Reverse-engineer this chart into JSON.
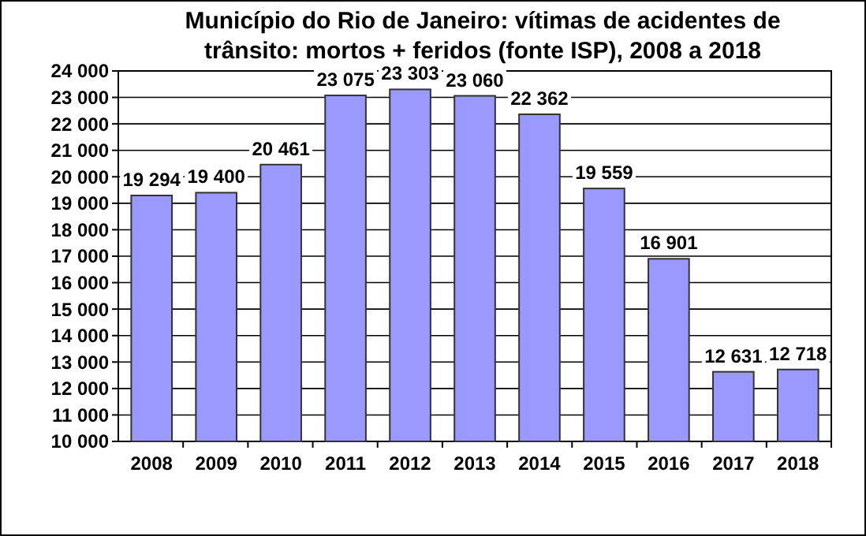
{
  "chart_data": {
    "type": "bar",
    "title": "Município do Rio de Janeiro: vítimas de acidentes de trânsito: mortos + feridos (fonte ISP), 2008 a 2018",
    "categories": [
      "2008",
      "2009",
      "2010",
      "2011",
      "2012",
      "2013",
      "2014",
      "2015",
      "2016",
      "2017",
      "2018"
    ],
    "values": [
      19294,
      19400,
      20461,
      23075,
      23303,
      23060,
      22362,
      19559,
      16901,
      12631,
      12718
    ],
    "value_labels": [
      "19 294",
      "19 400",
      "20 461",
      "23 075",
      "23 303",
      "23 060",
      "22 362",
      "19 559",
      "16 901",
      "12 631",
      "12 718"
    ],
    "color": "#9999ff",
    "ylim": [
      10000,
      24000
    ],
    "yticks": [
      {
        "value": 10000,
        "label": "10 000"
      },
      {
        "value": 11000,
        "label": "11 000"
      },
      {
        "value": 12000,
        "label": "12 000"
      },
      {
        "value": 13000,
        "label": "13 000"
      },
      {
        "value": 14000,
        "label": "14 000"
      },
      {
        "value": 15000,
        "label": "15 000"
      },
      {
        "value": 16000,
        "label": "16 000"
      },
      {
        "value": 17000,
        "label": "17 000"
      },
      {
        "value": 18000,
        "label": "18 000"
      },
      {
        "value": 19000,
        "label": "19 000"
      },
      {
        "value": 20000,
        "label": "20 000"
      },
      {
        "value": 21000,
        "label": "21 000"
      },
      {
        "value": 22000,
        "label": "22 000"
      },
      {
        "value": 23000,
        "label": "23 000"
      },
      {
        "value": 24000,
        "label": "24 000"
      }
    ],
    "grid": "y"
  }
}
